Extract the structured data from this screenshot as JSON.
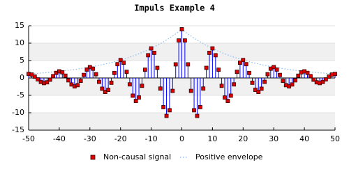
{
  "chart_data": {
    "type": "impulse",
    "title": "Impuls Example 4",
    "x": [
      -50,
      -49,
      -48,
      -47,
      -46,
      -45,
      -44,
      -43,
      -42,
      -41,
      -40,
      -39,
      -38,
      -37,
      -36,
      -35,
      -34,
      -33,
      -32,
      -31,
      -30,
      -29,
      -28,
      -27,
      -26,
      -25,
      -24,
      -23,
      -22,
      -21,
      -20,
      -19,
      -18,
      -17,
      -16,
      -15,
      -14,
      -13,
      -12,
      -11,
      -10,
      -9,
      -8,
      -7,
      -6,
      -5,
      -4,
      -3,
      -2,
      -1,
      0,
      1,
      2,
      3,
      4,
      5,
      6,
      7,
      8,
      9,
      10,
      11,
      12,
      13,
      14,
      15,
      16,
      17,
      18,
      19,
      20,
      21,
      22,
      23,
      24,
      25,
      26,
      27,
      28,
      29,
      30,
      31,
      32,
      33,
      34,
      35,
      36,
      37,
      38,
      39,
      40,
      41,
      42,
      43,
      44,
      45,
      46,
      47,
      48,
      49,
      50
    ],
    "series": [
      {
        "name": "Non-causal signal",
        "color": "#0000ff",
        "marker_color": "#dd0000",
        "values": [
          1.15,
          0.98,
          0.39,
          -0.41,
          -1.14,
          -1.48,
          -1.25,
          -0.5,
          0.53,
          1.46,
          1.9,
          1.61,
          0.65,
          -0.68,
          -1.87,
          -2.43,
          -2.07,
          -0.83,
          0.87,
          2.4,
          3.12,
          2.66,
          1.07,
          -1.12,
          -3.09,
          -4.01,
          -3.41,
          -1.37,
          1.44,
          3.96,
          5.15,
          4.38,
          1.76,
          -1.85,
          -5.09,
          -6.61,
          -5.62,
          -2.26,
          2.37,
          6.53,
          8.49,
          7.22,
          2.9,
          -3.05,
          -8.39,
          -10.9,
          -9.27,
          -3.72,
          3.91,
          10.77,
          14,
          10.77,
          3.91,
          -3.72,
          -9.27,
          -10.9,
          -8.39,
          -3.05,
          2.9,
          7.22,
          8.49,
          6.53,
          2.37,
          -2.26,
          -5.62,
          -6.61,
          -5.09,
          -1.85,
          1.76,
          4.38,
          5.15,
          3.96,
          1.44,
          -1.37,
          -3.41,
          -4.01,
          -3.09,
          -1.12,
          1.07,
          2.66,
          3.12,
          2.4,
          0.87,
          -0.83,
          -2.07,
          -2.43,
          -1.87,
          -0.68,
          0.65,
          1.61,
          1.9,
          1.46,
          0.53,
          -0.5,
          -1.25,
          -1.48,
          -1.14,
          -0.41,
          0.39,
          0.98,
          1.15
        ]
      },
      {
        "name": "Positive envelope",
        "color": "#88bbee",
        "values": [
          1.149,
          1.208,
          1.27,
          1.335,
          1.404,
          1.476,
          1.551,
          1.631,
          1.714,
          1.802,
          1.895,
          1.992,
          2.094,
          2.201,
          2.314,
          2.433,
          2.558,
          2.689,
          2.826,
          2.971,
          3.124,
          3.284,
          3.452,
          3.629,
          3.815,
          4.011,
          4.217,
          4.433,
          4.66,
          4.899,
          5.15,
          5.414,
          5.692,
          5.984,
          6.29,
          6.613,
          6.952,
          7.309,
          7.683,
          8.077,
          8.491,
          8.927,
          9.384,
          9.866,
          10.371,
          10.903,
          11.462,
          12.05,
          12.668,
          13.317,
          14,
          13.317,
          12.668,
          12.05,
          11.462,
          10.903,
          10.371,
          9.866,
          9.384,
          8.927,
          8.491,
          8.077,
          7.683,
          7.309,
          6.952,
          6.613,
          6.29,
          5.984,
          5.692,
          5.414,
          5.15,
          4.899,
          4.66,
          4.433,
          4.217,
          4.011,
          3.815,
          3.629,
          3.452,
          3.284,
          3.124,
          2.971,
          2.826,
          2.689,
          2.558,
          2.433,
          2.314,
          2.201,
          2.094,
          1.992,
          1.895,
          1.802,
          1.714,
          1.631,
          1.551,
          1.476,
          1.404,
          1.335,
          1.27,
          1.208,
          1.149
        ]
      }
    ],
    "xlim": [
      -50,
      50
    ],
    "xticks": [
      -50,
      -40,
      -30,
      -20,
      -10,
      0,
      10,
      20,
      30,
      40,
      50
    ],
    "ylim": [
      -15,
      15
    ],
    "yticks": [
      -15,
      -10,
      -5,
      0,
      5,
      10,
      15
    ],
    "grid": true,
    "legend": "bottom"
  }
}
